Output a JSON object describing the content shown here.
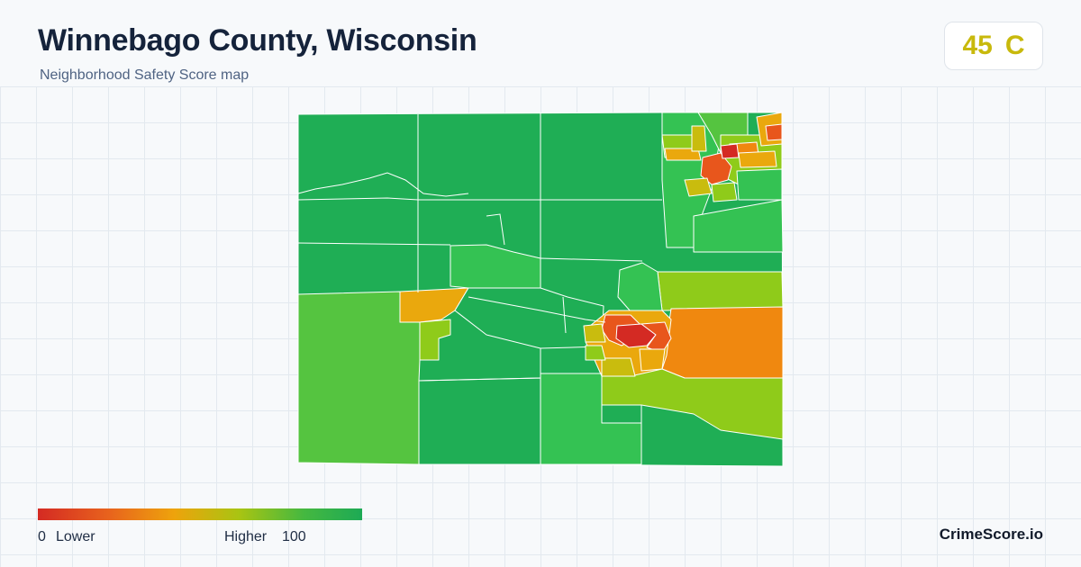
{
  "header": {
    "title": "Winnebago County, Wisconsin",
    "subtitle": "Neighborhood Safety Score map"
  },
  "score": {
    "value": "45",
    "grade": "C",
    "color": "#c8b90c"
  },
  "legend": {
    "min_value": "0",
    "min_label": "Lower",
    "max_label": "Higher",
    "max_value": "100",
    "colors": [
      "#d42a23",
      "#e8631d",
      "#eea30c",
      "#a9c412",
      "#45b840",
      "#1daa55"
    ]
  },
  "brand": {
    "name": "CrimeScore.io"
  },
  "map": {
    "region": "Winnebago County",
    "palette": {
      "dark_green": "#1fae55",
      "green": "#34c253",
      "light_green": "#55c440",
      "yellow_green": "#8fcb1a",
      "yellow": "#c9bc0e",
      "orange_yellow": "#eaa80d",
      "orange": "#f0880f",
      "red_orange": "#e8561c",
      "red": "#d42a23"
    }
  }
}
